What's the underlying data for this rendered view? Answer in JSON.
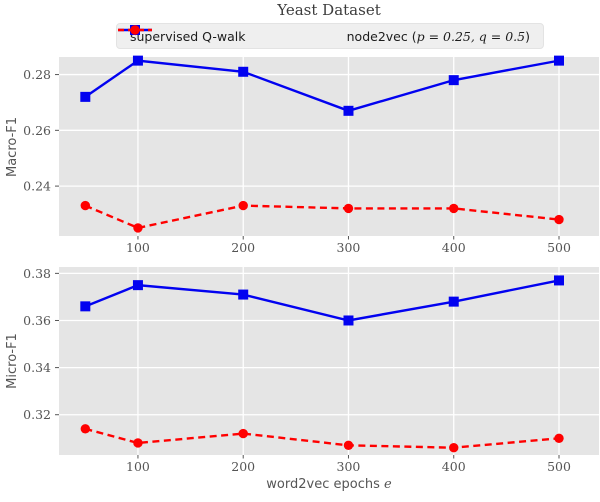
{
  "title": "Yeast Dataset",
  "legend": {
    "entries": [
      {
        "label_pre": "supervised Q-walk",
        "label_math": "",
        "label_post": "",
        "color": "#0202f0",
        "dash": false,
        "marker": "square"
      },
      {
        "label_pre": "node2vec (",
        "label_math": "p = 0.25, q = 0.5",
        "label_post": ")",
        "color": "#ff0000",
        "dash": true,
        "marker": "circle"
      }
    ]
  },
  "xlabel": {
    "text": "word2vec epochs ",
    "var": "e"
  },
  "style": {
    "plot_bg": "#e5e5e5",
    "grid_color": "#ffffff",
    "text_color": "#555555",
    "title_color": "#3d3d3d",
    "legend_bg": "#efefef",
    "blue": "#0202f0",
    "red": "#ff0000"
  },
  "chart_data": [
    {
      "type": "line",
      "title": "Yeast Dataset",
      "ylabel": "Macro-F1",
      "xlabel": "",
      "x": [
        50,
        100,
        200,
        300,
        400,
        500
      ],
      "xticks": [
        100,
        200,
        300,
        400,
        500
      ],
      "xlim": [
        25,
        538
      ],
      "yticks": [
        0.24,
        0.26,
        0.28
      ],
      "ylim": [
        0.2221,
        0.2863
      ],
      "grid": true,
      "legend_position": "upper center (above axes)",
      "series": [
        {
          "name": "supervised Q-walk",
          "color": "#0202f0",
          "marker": "square",
          "dash": false,
          "values": [
            0.272,
            0.285,
            0.281,
            0.267,
            0.278,
            0.285
          ]
        },
        {
          "name": "node2vec (p = 0.25, q = 0.5)",
          "color": "#ff0000",
          "marker": "circle",
          "dash": true,
          "values": [
            0.233,
            0.225,
            0.233,
            0.232,
            0.232,
            0.228
          ]
        }
      ]
    },
    {
      "type": "line",
      "title": "",
      "ylabel": "Micro-F1",
      "xlabel": "word2vec epochs e",
      "x": [
        50,
        100,
        200,
        300,
        400,
        500
      ],
      "xticks": [
        100,
        200,
        300,
        400,
        500
      ],
      "xlim": [
        25,
        538
      ],
      "yticks": [
        0.32,
        0.34,
        0.36,
        0.38
      ],
      "ylim": [
        0.3029,
        0.3827
      ],
      "grid": true,
      "series": [
        {
          "name": "supervised Q-walk",
          "color": "#0202f0",
          "marker": "square",
          "dash": false,
          "values": [
            0.366,
            0.375,
            0.371,
            0.36,
            0.368,
            0.377
          ]
        },
        {
          "name": "node2vec (p = 0.25, q = 0.5)",
          "color": "#ff0000",
          "marker": "circle",
          "dash": true,
          "values": [
            0.314,
            0.308,
            0.312,
            0.307,
            0.306,
            0.31
          ]
        }
      ]
    }
  ]
}
